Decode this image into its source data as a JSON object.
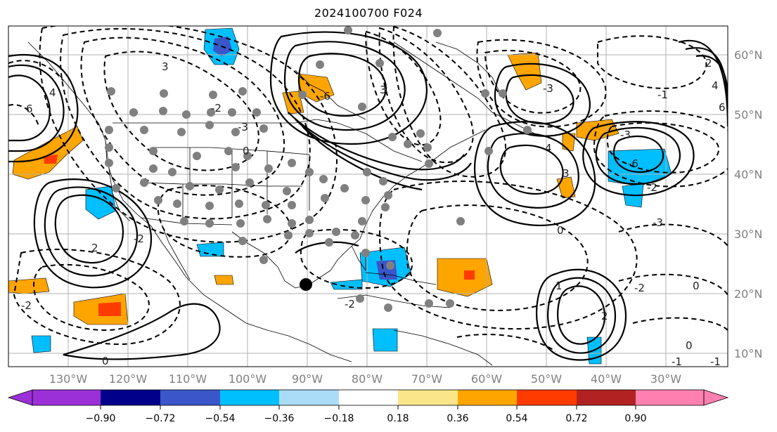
{
  "title": "2024100700 F024",
  "lat_labels": [
    "60°N",
    "50°N",
    "40°N",
    "30°N",
    "20°N",
    "10°N"
  ],
  "lon_labels": [
    "130°W",
    "120°W",
    "110°W",
    "100°W",
    "90°W",
    "80°W",
    "70°W",
    "60°W",
    "50°W",
    "40°W",
    "30°W"
  ],
  "colorbar": {
    "ticks": [
      "−0.90",
      "−0.72",
      "−0.54",
      "−0.36",
      "−0.18",
      "0.18",
      "0.36",
      "0.54",
      "0.72",
      "0.90"
    ],
    "colors": [
      "#9b30d8",
      "#00008b",
      "#3a56c8",
      "#00bfff",
      "#aadcf8",
      "#ffffff",
      "#fbe58a",
      "#ffa500",
      "#ff3b00",
      "#b22222",
      "#ff80b0"
    ]
  },
  "contour_labels": [
    "-6",
    "-3",
    "-6",
    "-3",
    "-3",
    "-2",
    "-2",
    "-2",
    "-2",
    "-2",
    "-1",
    "-1",
    "0",
    "0",
    "0",
    "0",
    "2",
    "2",
    "2",
    "3",
    "3",
    "3",
    "4",
    "4",
    "4",
    "6",
    "6",
    "-3",
    "-2",
    "-1",
    "0",
    "1"
  ],
  "colors": {
    "grid": "#b0b0b0",
    "coast": "#000000",
    "station": "#808080",
    "marker": "#000000"
  }
}
